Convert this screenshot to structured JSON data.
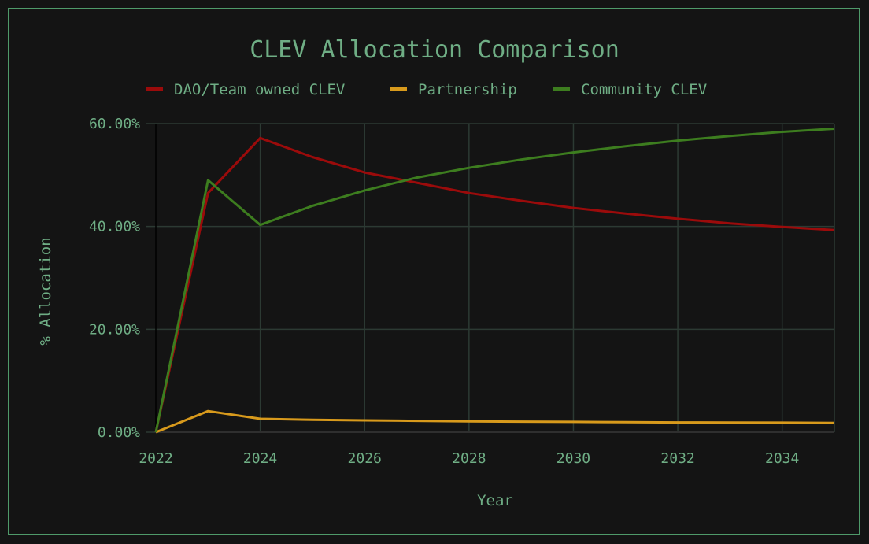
{
  "chart_data": {
    "type": "line",
    "title": "CLEV Allocation Comparison",
    "xlabel": "Year",
    "ylabel": "% Allocation",
    "x_ticks": [
      "2022",
      "2024",
      "2026",
      "2028",
      "2030",
      "2032",
      "2034"
    ],
    "y_ticks": [
      "0.00%",
      "20.00%",
      "40.00%",
      "60.00%"
    ],
    "xlim": [
      2022,
      2035
    ],
    "ylim": [
      0,
      60
    ],
    "grid": true,
    "legend_position": "top",
    "x": [
      2022,
      2023,
      2024,
      2025,
      2026,
      2027,
      2028,
      2029,
      2030,
      2031,
      2032,
      2033,
      2034,
      2035
    ],
    "series": [
      {
        "name": "DAO/Team owned CLEV",
        "color": "#9b0b0b",
        "values": [
          0,
          46.5,
          57.2,
          53.5,
          50.5,
          48.5,
          46.5,
          45.0,
          43.6,
          42.5,
          41.5,
          40.6,
          39.9,
          39.3
        ]
      },
      {
        "name": "Partnership",
        "color": "#d89a1c",
        "values": [
          0,
          4.1,
          2.6,
          2.4,
          2.3,
          2.2,
          2.1,
          2.05,
          2.0,
          1.95,
          1.9,
          1.88,
          1.85,
          1.8
        ]
      },
      {
        "name": "Community CLEV",
        "color": "#3d7d1f",
        "values": [
          0,
          49.0,
          40.3,
          44.0,
          47.0,
          49.5,
          51.4,
          53.0,
          54.4,
          55.6,
          56.7,
          57.6,
          58.4,
          59.0
        ]
      }
    ]
  }
}
